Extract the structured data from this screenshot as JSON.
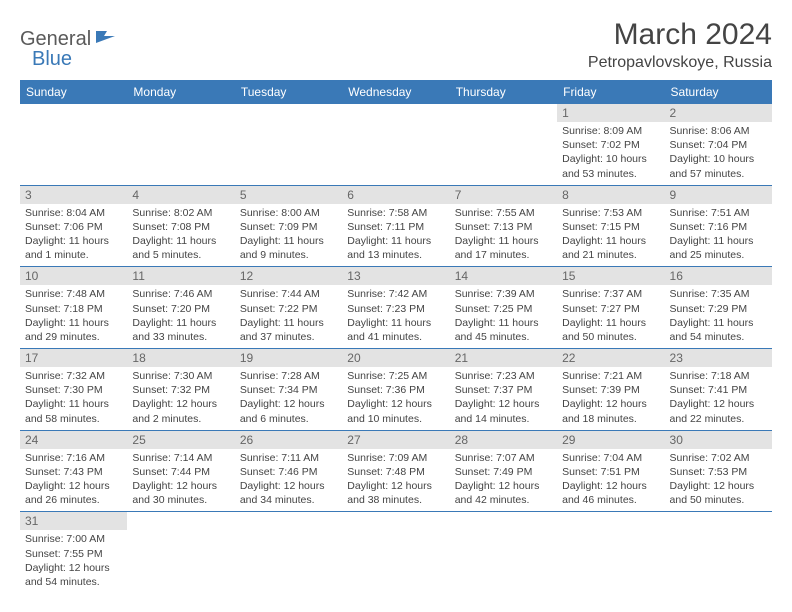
{
  "logo": {
    "general": "General",
    "blue": "Blue"
  },
  "title": "March 2024",
  "location": "Petropavlovskoye, Russia",
  "colors": {
    "header_bg": "#3a79b7",
    "header_text": "#ffffff",
    "daynum_bg": "#e3e3e3",
    "daynum_text": "#666666",
    "border": "#3a79b7",
    "logo_gray": "#5a5a5a",
    "logo_blue": "#3a79b7"
  },
  "weekdays": [
    "Sunday",
    "Monday",
    "Tuesday",
    "Wednesday",
    "Thursday",
    "Friday",
    "Saturday"
  ],
  "weeks": [
    [
      null,
      null,
      null,
      null,
      null,
      {
        "n": "1",
        "sr": "Sunrise: 8:09 AM",
        "ss": "Sunset: 7:02 PM",
        "dl1": "Daylight: 10 hours",
        "dl2": "and 53 minutes."
      },
      {
        "n": "2",
        "sr": "Sunrise: 8:06 AM",
        "ss": "Sunset: 7:04 PM",
        "dl1": "Daylight: 10 hours",
        "dl2": "and 57 minutes."
      }
    ],
    [
      {
        "n": "3",
        "sr": "Sunrise: 8:04 AM",
        "ss": "Sunset: 7:06 PM",
        "dl1": "Daylight: 11 hours",
        "dl2": "and 1 minute."
      },
      {
        "n": "4",
        "sr": "Sunrise: 8:02 AM",
        "ss": "Sunset: 7:08 PM",
        "dl1": "Daylight: 11 hours",
        "dl2": "and 5 minutes."
      },
      {
        "n": "5",
        "sr": "Sunrise: 8:00 AM",
        "ss": "Sunset: 7:09 PM",
        "dl1": "Daylight: 11 hours",
        "dl2": "and 9 minutes."
      },
      {
        "n": "6",
        "sr": "Sunrise: 7:58 AM",
        "ss": "Sunset: 7:11 PM",
        "dl1": "Daylight: 11 hours",
        "dl2": "and 13 minutes."
      },
      {
        "n": "7",
        "sr": "Sunrise: 7:55 AM",
        "ss": "Sunset: 7:13 PM",
        "dl1": "Daylight: 11 hours",
        "dl2": "and 17 minutes."
      },
      {
        "n": "8",
        "sr": "Sunrise: 7:53 AM",
        "ss": "Sunset: 7:15 PM",
        "dl1": "Daylight: 11 hours",
        "dl2": "and 21 minutes."
      },
      {
        "n": "9",
        "sr": "Sunrise: 7:51 AM",
        "ss": "Sunset: 7:16 PM",
        "dl1": "Daylight: 11 hours",
        "dl2": "and 25 minutes."
      }
    ],
    [
      {
        "n": "10",
        "sr": "Sunrise: 7:48 AM",
        "ss": "Sunset: 7:18 PM",
        "dl1": "Daylight: 11 hours",
        "dl2": "and 29 minutes."
      },
      {
        "n": "11",
        "sr": "Sunrise: 7:46 AM",
        "ss": "Sunset: 7:20 PM",
        "dl1": "Daylight: 11 hours",
        "dl2": "and 33 minutes."
      },
      {
        "n": "12",
        "sr": "Sunrise: 7:44 AM",
        "ss": "Sunset: 7:22 PM",
        "dl1": "Daylight: 11 hours",
        "dl2": "and 37 minutes."
      },
      {
        "n": "13",
        "sr": "Sunrise: 7:42 AM",
        "ss": "Sunset: 7:23 PM",
        "dl1": "Daylight: 11 hours",
        "dl2": "and 41 minutes."
      },
      {
        "n": "14",
        "sr": "Sunrise: 7:39 AM",
        "ss": "Sunset: 7:25 PM",
        "dl1": "Daylight: 11 hours",
        "dl2": "and 45 minutes."
      },
      {
        "n": "15",
        "sr": "Sunrise: 7:37 AM",
        "ss": "Sunset: 7:27 PM",
        "dl1": "Daylight: 11 hours",
        "dl2": "and 50 minutes."
      },
      {
        "n": "16",
        "sr": "Sunrise: 7:35 AM",
        "ss": "Sunset: 7:29 PM",
        "dl1": "Daylight: 11 hours",
        "dl2": "and 54 minutes."
      }
    ],
    [
      {
        "n": "17",
        "sr": "Sunrise: 7:32 AM",
        "ss": "Sunset: 7:30 PM",
        "dl1": "Daylight: 11 hours",
        "dl2": "and 58 minutes."
      },
      {
        "n": "18",
        "sr": "Sunrise: 7:30 AM",
        "ss": "Sunset: 7:32 PM",
        "dl1": "Daylight: 12 hours",
        "dl2": "and 2 minutes."
      },
      {
        "n": "19",
        "sr": "Sunrise: 7:28 AM",
        "ss": "Sunset: 7:34 PM",
        "dl1": "Daylight: 12 hours",
        "dl2": "and 6 minutes."
      },
      {
        "n": "20",
        "sr": "Sunrise: 7:25 AM",
        "ss": "Sunset: 7:36 PM",
        "dl1": "Daylight: 12 hours",
        "dl2": "and 10 minutes."
      },
      {
        "n": "21",
        "sr": "Sunrise: 7:23 AM",
        "ss": "Sunset: 7:37 PM",
        "dl1": "Daylight: 12 hours",
        "dl2": "and 14 minutes."
      },
      {
        "n": "22",
        "sr": "Sunrise: 7:21 AM",
        "ss": "Sunset: 7:39 PM",
        "dl1": "Daylight: 12 hours",
        "dl2": "and 18 minutes."
      },
      {
        "n": "23",
        "sr": "Sunrise: 7:18 AM",
        "ss": "Sunset: 7:41 PM",
        "dl1": "Daylight: 12 hours",
        "dl2": "and 22 minutes."
      }
    ],
    [
      {
        "n": "24",
        "sr": "Sunrise: 7:16 AM",
        "ss": "Sunset: 7:43 PM",
        "dl1": "Daylight: 12 hours",
        "dl2": "and 26 minutes."
      },
      {
        "n": "25",
        "sr": "Sunrise: 7:14 AM",
        "ss": "Sunset: 7:44 PM",
        "dl1": "Daylight: 12 hours",
        "dl2": "and 30 minutes."
      },
      {
        "n": "26",
        "sr": "Sunrise: 7:11 AM",
        "ss": "Sunset: 7:46 PM",
        "dl1": "Daylight: 12 hours",
        "dl2": "and 34 minutes."
      },
      {
        "n": "27",
        "sr": "Sunrise: 7:09 AM",
        "ss": "Sunset: 7:48 PM",
        "dl1": "Daylight: 12 hours",
        "dl2": "and 38 minutes."
      },
      {
        "n": "28",
        "sr": "Sunrise: 7:07 AM",
        "ss": "Sunset: 7:49 PM",
        "dl1": "Daylight: 12 hours",
        "dl2": "and 42 minutes."
      },
      {
        "n": "29",
        "sr": "Sunrise: 7:04 AM",
        "ss": "Sunset: 7:51 PM",
        "dl1": "Daylight: 12 hours",
        "dl2": "and 46 minutes."
      },
      {
        "n": "30",
        "sr": "Sunrise: 7:02 AM",
        "ss": "Sunset: 7:53 PM",
        "dl1": "Daylight: 12 hours",
        "dl2": "and 50 minutes."
      }
    ],
    [
      {
        "n": "31",
        "sr": "Sunrise: 7:00 AM",
        "ss": "Sunset: 7:55 PM",
        "dl1": "Daylight: 12 hours",
        "dl2": "and 54 minutes."
      },
      null,
      null,
      null,
      null,
      null,
      null
    ]
  ]
}
